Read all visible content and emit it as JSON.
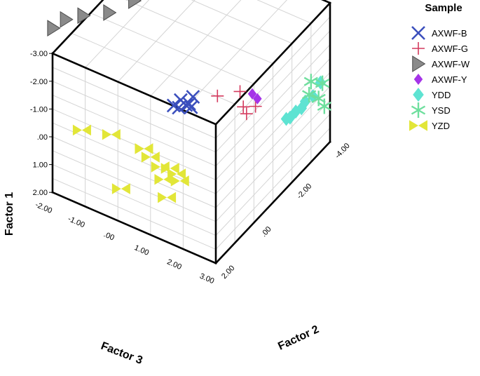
{
  "chart_data": {
    "type": "scatter",
    "subtype": "3d-scatter",
    "axes": {
      "factor1": {
        "label": "Factor 1",
        "range": [
          -3.0,
          2.0
        ],
        "ticks": [
          "-3.00",
          "-2.00",
          "-1.00",
          ".00",
          "1.00",
          "2.00"
        ],
        "tick_values": [
          -3,
          -2,
          -1,
          0,
          1,
          2
        ]
      },
      "factor2": {
        "label": "Factor 2",
        "range": [
          -4.0,
          2.0
        ],
        "ticks": [
          "-4.00",
          "-2.00",
          ".00",
          "2.00"
        ],
        "tick_values": [
          -4,
          -2,
          0,
          2
        ]
      },
      "factor3": {
        "label": "Factor 3",
        "range": [
          -2.0,
          3.0
        ],
        "ticks": [
          "-2.00",
          "-1.00",
          ".00",
          "1.00",
          "2.00",
          "3.00"
        ],
        "tick_values": [
          -2,
          -1,
          0,
          1,
          2,
          3
        ]
      }
    },
    "grid": true,
    "legend": {
      "title": "Sample",
      "placement": "right",
      "entries": [
        {
          "name": "AXWF-B",
          "marker": "x",
          "color": "#3b4fbd"
        },
        {
          "name": "AXWF-G",
          "marker": "plus",
          "color": "#d43a5e"
        },
        {
          "name": "AXWF-W",
          "marker": "triangle-right",
          "color": "#8a8a8a"
        },
        {
          "name": "AXWF-Y",
          "marker": "diamond",
          "color": "#a534e8"
        },
        {
          "name": "YDD",
          "marker": "diamond",
          "color": "#5ee3d2"
        },
        {
          "name": "YSD",
          "marker": "asterisk",
          "color": "#6fdf9e"
        },
        {
          "name": "YZD",
          "marker": "bowtie",
          "color": "#e2e638"
        }
      ]
    },
    "series": [
      {
        "name": "AXWF-B",
        "points": [
          {
            "f1": -2.3,
            "f2": 1.3,
            "f3": 1.3
          },
          {
            "f1": -2.2,
            "f2": 1.2,
            "f3": 1.4
          },
          {
            "f1": -2.4,
            "f2": 1.1,
            "f3": 1.4
          },
          {
            "f1": -2.2,
            "f2": 1.0,
            "f3": 1.5
          },
          {
            "f1": -2.3,
            "f2": 1.0,
            "f3": 1.6
          },
          {
            "f1": -2.1,
            "f2": 0.9,
            "f3": 1.6
          },
          {
            "f1": -2.4,
            "f2": 0.8,
            "f3": 1.6
          }
        ]
      },
      {
        "name": "AXWF-G",
        "points": [
          {
            "f1": -2.2,
            "f2": 0.2,
            "f3": 2.0
          },
          {
            "f1": -2.2,
            "f2": -0.3,
            "f3": 2.4
          },
          {
            "f1": -1.7,
            "f2": -0.3,
            "f3": 2.5
          },
          {
            "f1": -1.6,
            "f2": -0.6,
            "f3": 2.7
          },
          {
            "f1": -1.5,
            "f2": -0.3,
            "f3": 2.6
          }
        ]
      },
      {
        "name": "AXWF-W",
        "points": [
          {
            "f1": -3.0,
            "f2": 1.1,
            "f3": -2.5
          },
          {
            "f1": -3.0,
            "f2": 0.6,
            "f3": -2.4
          },
          {
            "f1": -3.0,
            "f2": 0.2,
            "f3": -2.1
          },
          {
            "f1": -3.0,
            "f2": -0.3,
            "f3": -1.6
          },
          {
            "f1": -3.0,
            "f2": -1.1,
            "f3": -1.3
          }
        ]
      },
      {
        "name": "AXWF-Y",
        "points": [
          {
            "f1": -2.0,
            "f2": -0.6,
            "f3": 2.6
          },
          {
            "f1": -1.8,
            "f2": -0.7,
            "f3": 2.7
          }
        ]
      },
      {
        "name": "YDD",
        "points": [
          {
            "f1": -0.5,
            "f2": -1.7,
            "f3": 3.0
          },
          {
            "f1": -0.4,
            "f2": -1.9,
            "f3": 3.0
          },
          {
            "f1": -0.4,
            "f2": -2.2,
            "f3": 3.0
          },
          {
            "f1": -0.3,
            "f2": -2.5,
            "f3": 3.0
          },
          {
            "f1": -0.4,
            "f2": -2.7,
            "f3": 3.0
          },
          {
            "f1": -0.3,
            "f2": -3.1,
            "f3": 3.0
          },
          {
            "f1": -0.5,
            "f2": -3.5,
            "f3": 3.0
          }
        ]
      },
      {
        "name": "YSD",
        "points": [
          {
            "f1": -0.9,
            "f2": -3.0,
            "f3": 3.0
          },
          {
            "f1": -0.5,
            "f2": -2.9,
            "f3": 3.0
          },
          {
            "f1": -0.4,
            "f2": -3.6,
            "f3": 3.0
          },
          {
            "f1": 0.0,
            "f2": -3.4,
            "f3": 3.0
          },
          {
            "f1": 0.5,
            "f2": -3.7,
            "f3": 3.0
          }
        ]
      },
      {
        "name": "YZD",
        "points": [
          {
            "f1": -0.7,
            "f2": 2.0,
            "f3": -1.1
          },
          {
            "f1": -1.0,
            "f2": 2.0,
            "f3": -0.2
          },
          {
            "f1": -1.0,
            "f2": 2.0,
            "f3": 0.8
          },
          {
            "f1": -0.8,
            "f2": 2.0,
            "f3": 1.0
          },
          {
            "f1": -0.6,
            "f2": 2.0,
            "f3": 1.3
          },
          {
            "f1": -0.7,
            "f2": 2.0,
            "f3": 1.6
          },
          {
            "f1": -0.6,
            "f2": 2.0,
            "f3": 1.8
          },
          {
            "f1": -0.2,
            "f2": 2.0,
            "f3": 1.4
          },
          {
            "f1": -0.4,
            "f2": 2.0,
            "f3": 1.9
          },
          {
            "f1": 0.4,
            "f2": 2.0,
            "f3": 1.5
          },
          {
            "f1": 0.8,
            "f2": 2.0,
            "f3": 0.1
          }
        ]
      }
    ]
  }
}
